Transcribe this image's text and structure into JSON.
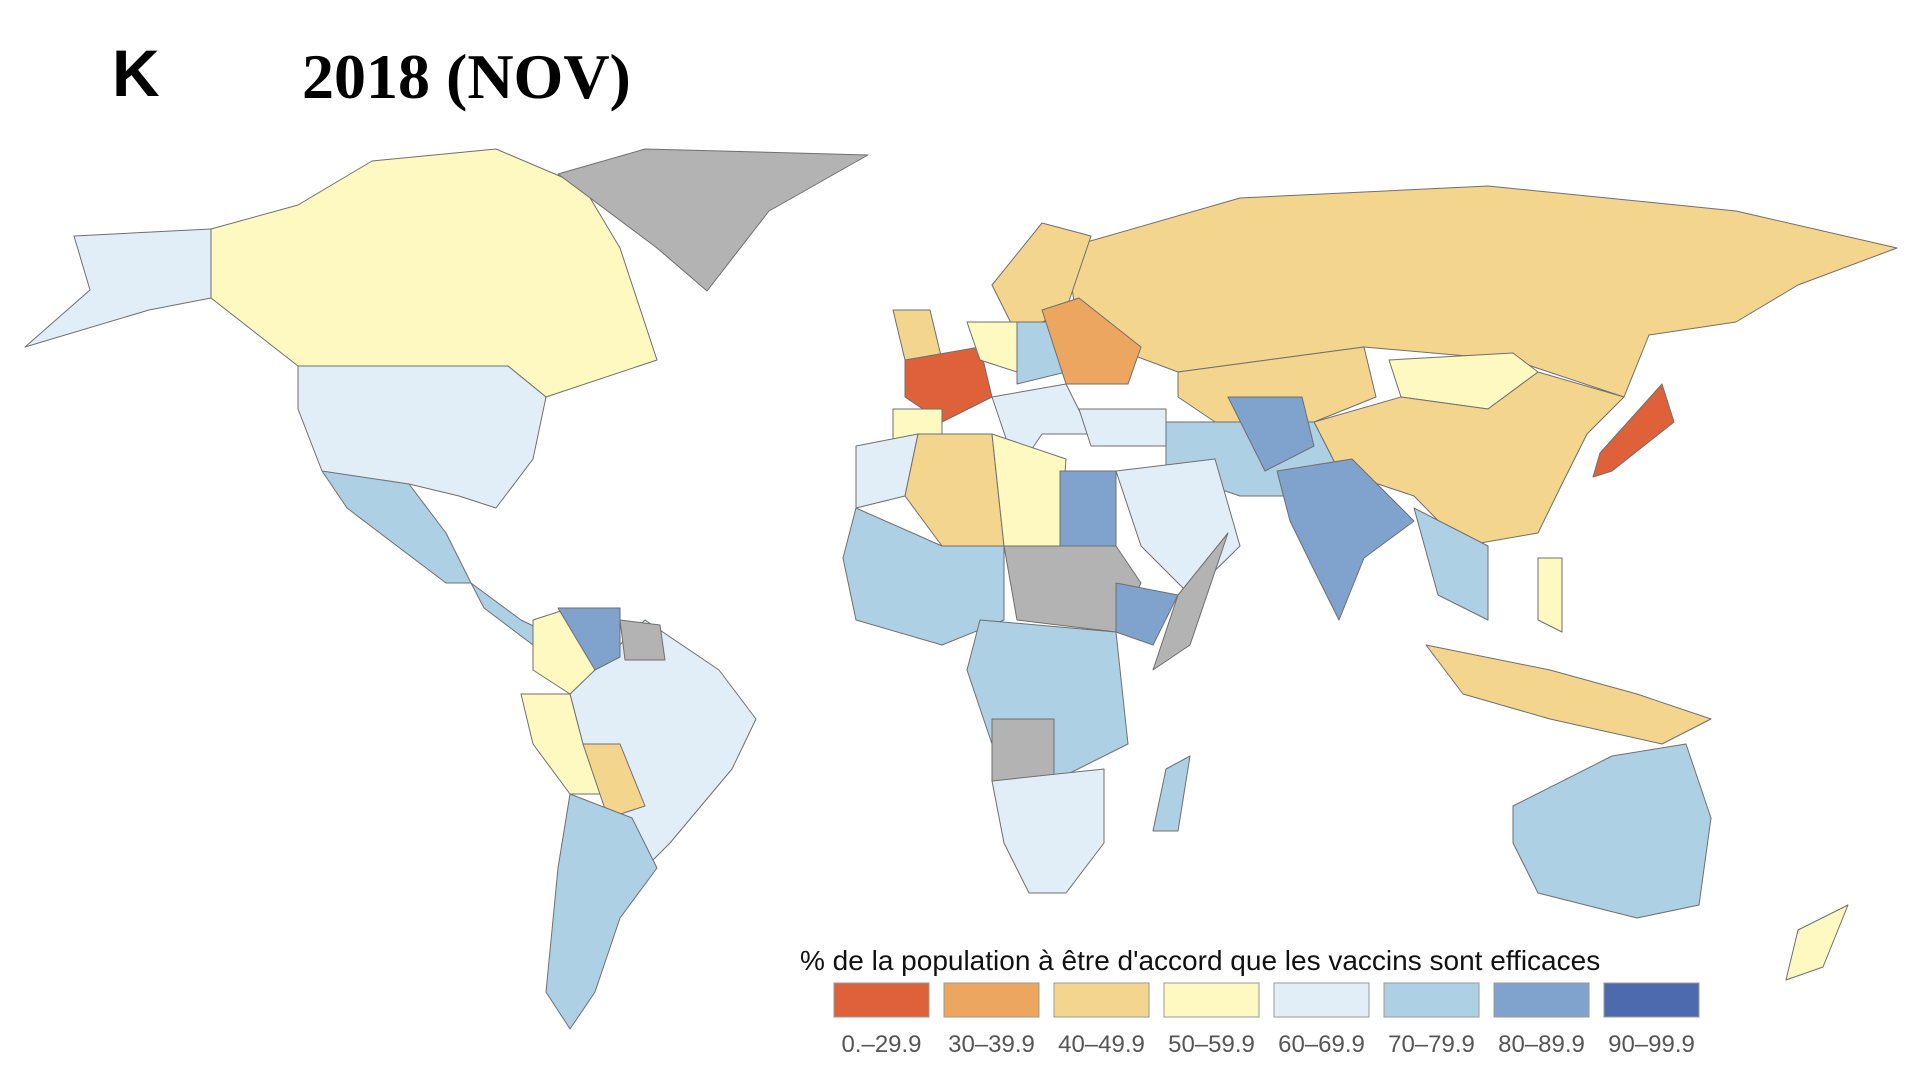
{
  "panel_label": "K",
  "title": "2018 (NOV)",
  "legend": {
    "title": "% de la population à être d'accord que les vaccins sont efficaces",
    "items": [
      {
        "label": "0.–29.9",
        "color": "#df6139"
      },
      {
        "label": "30–39.9",
        "color": "#eca65f"
      },
      {
        "label": "40–49.9",
        "color": "#f4d58d"
      },
      {
        "label": "50–59.9",
        "color": "#fdf9c0"
      },
      {
        "label": "60–69.9",
        "color": "#e2eef7"
      },
      {
        "label": "70–79.9",
        "color": "#aed0e4"
      },
      {
        "label": "80–89.9",
        "color": "#7fa3cd"
      },
      {
        "label": "90–99.9",
        "color": "#4d6aae"
      }
    ]
  }
}
